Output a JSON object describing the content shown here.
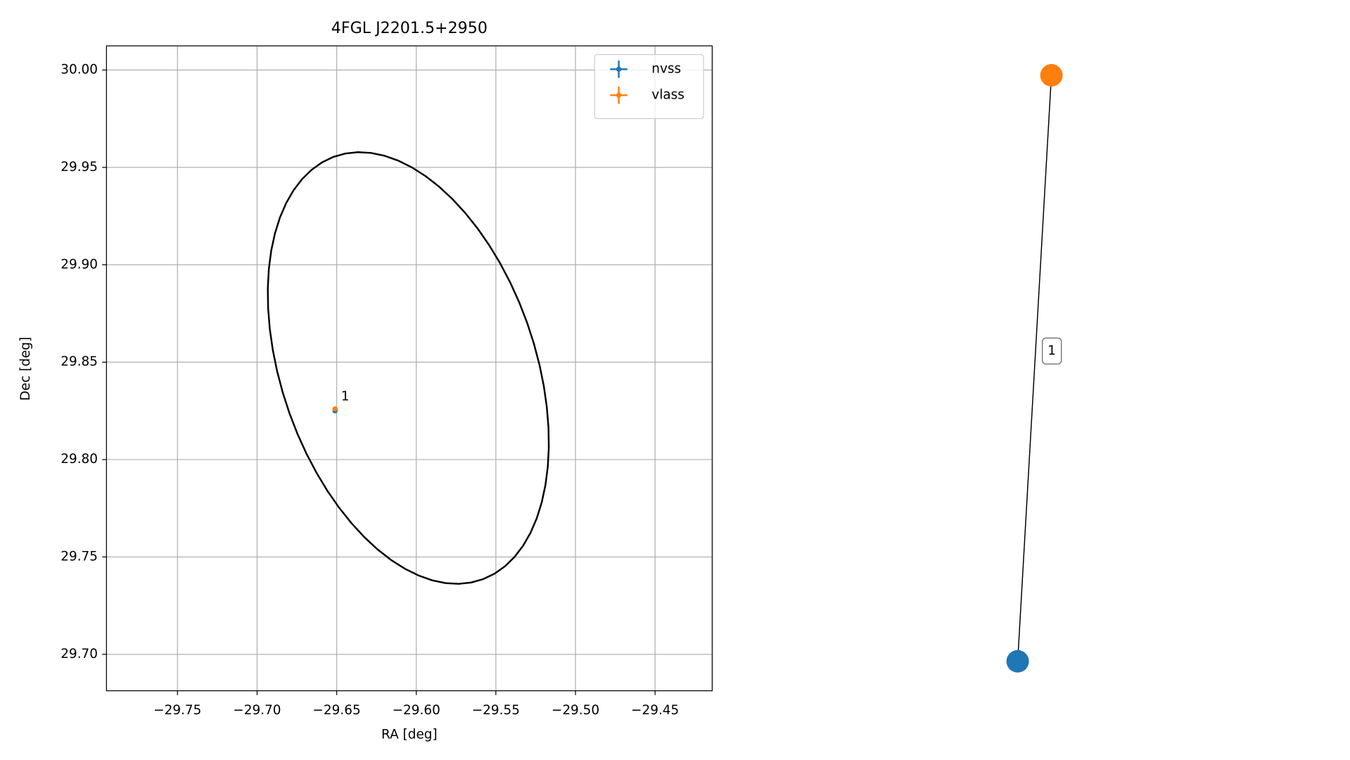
{
  "chart_data": [
    {
      "type": "scatter",
      "title": "4FGL J2201.5+2950",
      "x_label": "RA [deg]",
      "y_label": "Dec [deg]",
      "series": [
        {
          "name": "nvss",
          "color": "#1f77b4",
          "x": [
            -29.651
          ],
          "values": [
            29.825
          ]
        },
        {
          "name": "vlass",
          "color": "#ff7f0e",
          "x": [
            -29.651
          ],
          "values": [
            29.826
          ]
        }
      ],
      "annotations": [
        {
          "text": "1",
          "x": -29.651,
          "y": 29.826
        }
      ],
      "ellipse": {
        "x": -29.605,
        "y": 29.847,
        "axis_a": [
          -0.015,
          0.109
        ],
        "axis_b": [
          0.087,
          -0.02
        ],
        "color": "#000000"
      },
      "xlim": [
        -29.7946,
        -29.4141
      ],
      "xticks": [
        {
          "value": -29.75,
          "label": "−29.75"
        },
        {
          "value": -29.7,
          "label": "−29.70"
        },
        {
          "value": -29.65,
          "label": "−29.65"
        },
        {
          "value": -29.6,
          "label": "−29.60"
        },
        {
          "value": -29.55,
          "label": "−29.55"
        },
        {
          "value": -29.5,
          "label": "−29.50"
        },
        {
          "value": -29.45,
          "label": "−29.45"
        }
      ],
      "ylim": [
        29.6813,
        30.0124
      ],
      "yticks": [
        {
          "value": 29.7,
          "label": "29.70"
        },
        29.75,
        {
          "value": 29.8,
          "label": "29.80"
        },
        29.85,
        {
          "value": 29.9,
          "label": "29.90"
        },
        29.95,
        {
          "value": 30,
          "label": "30.00"
        }
      ],
      "grid": true,
      "legend": "upper right"
    },
    {
      "type": "graph",
      "nodes": [
        {
          "color": "#1f77b4"
        },
        {
          "color": "#ff7f0e"
        }
      ],
      "edges": [
        {
          "source": 0,
          "target": 1,
          "label": "1"
        }
      ]
    }
  ]
}
